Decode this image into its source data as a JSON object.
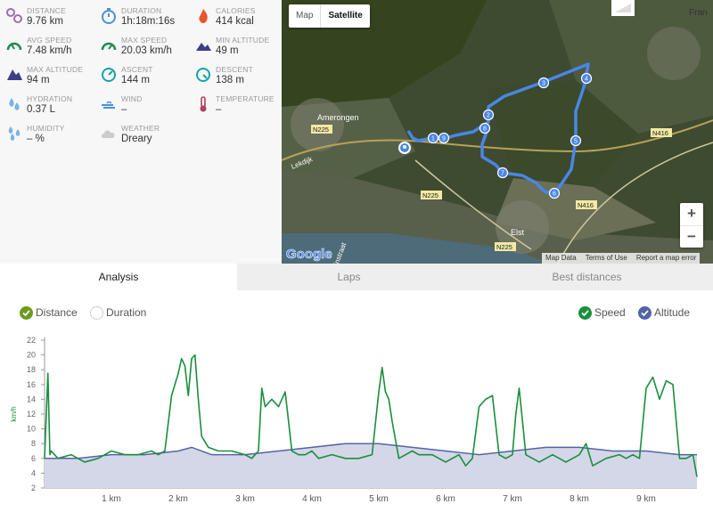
{
  "stats": [
    {
      "label": "DISTANCE",
      "value": "9.76 km",
      "icon": "distance-icon",
      "color": "#9c6db6"
    },
    {
      "label": "DURATION",
      "value": "1h:18m:16s",
      "icon": "stopwatch-icon",
      "color": "#4a90d9"
    },
    {
      "label": "CALORIES",
      "value": "414 kcal",
      "icon": "flame-icon",
      "color": "#e8562a"
    },
    {
      "label": "AVG SPEED",
      "value": "7.48 km/h",
      "icon": "avg-speed-gauge-icon",
      "color": "#1e8a4c"
    },
    {
      "label": "MAX SPEED",
      "value": "20.03 km/h",
      "icon": "max-speed-gauge-icon",
      "color": "#1e8a4c"
    },
    {
      "label": "MIN ALTITUDE",
      "value": "49 m",
      "icon": "min-altitude-icon",
      "color": "#3d3d8a"
    },
    {
      "label": "MAX ALTITUDE",
      "value": "94 m",
      "icon": "max-altitude-icon",
      "color": "#3d3d8a"
    },
    {
      "label": "ASCENT",
      "value": "144 m",
      "icon": "ascent-icon",
      "color": "#1aa3a3"
    },
    {
      "label": "DESCENT",
      "value": "138 m",
      "icon": "descent-icon",
      "color": "#1aa3a3"
    },
    {
      "label": "HYDRATION",
      "value": "0.37 L",
      "icon": "water-drops-icon",
      "color": "#7ab3e6"
    },
    {
      "label": "WIND",
      "value": "–",
      "icon": "wind-icon",
      "color": "#4a90d9"
    },
    {
      "label": "TEMPERATURE",
      "value": "–",
      "icon": "thermometer-icon",
      "color": "#b04060"
    },
    {
      "label": "HUMIDITY",
      "value": "– %",
      "icon": "humidity-drops-icon",
      "color": "#7ab3e6"
    },
    {
      "label": "WEATHER",
      "value": "Dreary",
      "icon": "cloud-icon",
      "color": "#cccccc"
    }
  ],
  "map": {
    "toggle": {
      "map": "Map",
      "satellite": "Satellite"
    },
    "labels": {
      "town1": "Amerongen",
      "town2": "Elst",
      "edge": "Fran",
      "road1": "N225",
      "road2": "N225",
      "road3": "N225",
      "road4": "N416",
      "road5": "N416",
      "street1": "Lekdijk",
      "street2": "Rijnstraat",
      "brand": "Google"
    },
    "markers": [
      "1",
      "2",
      "3",
      "4",
      "5",
      "6",
      "7",
      "8",
      "9"
    ],
    "attribution": {
      "data": "Map Data",
      "terms": "Terms of Use",
      "report": "Report a map error"
    },
    "zoom_in": "+",
    "zoom_out": "−"
  },
  "tabs": {
    "analysis": "Analysis",
    "laps": "Laps",
    "best": "Best distances"
  },
  "options": {
    "distance": "Distance",
    "duration": "Duration",
    "speed": "Speed",
    "altitude": "Altitude"
  },
  "colors": {
    "speed": "#1a8f3c",
    "altitude": "#5563a6",
    "altitude_fill": "#d4d7e8",
    "distance_check": "#6b9b1f"
  },
  "chart_data": {
    "type": "line",
    "ylabel": "km/h",
    "ylim": [
      2,
      22
    ],
    "yticks": [
      2,
      4,
      6,
      8,
      10,
      12,
      14,
      16,
      18,
      20,
      22
    ],
    "xlim": [
      0,
      9.76
    ],
    "xticks": [
      "1 km",
      "2 km",
      "3 km",
      "4 km",
      "5 km",
      "6 km",
      "7 km",
      "8 km",
      "9 km"
    ],
    "series": [
      {
        "name": "Speed",
        "x": [
          0,
          0.05,
          0.08,
          0.1,
          0.2,
          0.4,
          0.6,
          0.8,
          0.9,
          1,
          1.2,
          1.4,
          1.6,
          1.7,
          1.8,
          1.9,
          2,
          2.05,
          2.1,
          2.15,
          2.2,
          2.25,
          2.3,
          2.35,
          2.45,
          2.6,
          2.8,
          3,
          3.1,
          3.2,
          3.25,
          3.3,
          3.4,
          3.5,
          3.6,
          3.7,
          3.8,
          3.9,
          4,
          4.1,
          4.3,
          4.5,
          4.7,
          4.9,
          5,
          5.05,
          5.1,
          5.15,
          5.2,
          5.3,
          5.4,
          5.5,
          5.6,
          5.8,
          6,
          6.2,
          6.3,
          6.4,
          6.5,
          6.6,
          6.7,
          6.8,
          6.9,
          7,
          7.05,
          7.1,
          7.2,
          7.4,
          7.6,
          7.8,
          7.9,
          8,
          8.1,
          8.2,
          8.4,
          8.6,
          8.7,
          8.8,
          8.9,
          9,
          9.1,
          9.2,
          9.3,
          9.4,
          9.5,
          9.6,
          9.7,
          9.76
        ],
        "values": [
          6,
          17.5,
          6.5,
          7,
          6,
          6.5,
          5.5,
          6,
          6.5,
          7,
          6.5,
          6.5,
          7,
          6.5,
          7,
          14.5,
          17.5,
          19.5,
          18.5,
          14.5,
          19.5,
          20,
          14,
          9,
          7.5,
          7,
          7,
          6.5,
          6,
          7,
          15.5,
          13,
          14,
          13,
          15,
          7,
          6.5,
          6.5,
          7,
          6,
          6.5,
          6,
          6,
          6.5,
          15,
          18.3,
          15,
          14,
          11,
          6,
          6.5,
          7,
          6.5,
          6.5,
          5.5,
          6.5,
          5,
          6,
          13,
          14,
          14.5,
          6.5,
          6,
          6.5,
          12,
          15.5,
          6.5,
          5.5,
          6.5,
          5.5,
          6,
          6.5,
          8,
          5,
          6,
          6.5,
          6,
          6.5,
          6,
          15.5,
          17,
          14,
          16.5,
          16,
          6,
          6,
          6.5,
          3.5
        ]
      },
      {
        "name": "Altitude",
        "x": [
          0,
          0.5,
          1,
          1.5,
          2,
          2.2,
          2.5,
          3,
          3.5,
          4,
          4.5,
          5,
          5.5,
          6,
          6.5,
          7,
          7.5,
          8,
          8.5,
          9,
          9.5,
          9.76
        ],
        "values": [
          6,
          6,
          6.5,
          6.5,
          7,
          7.5,
          6.5,
          6.5,
          7,
          7.5,
          8,
          8,
          7.5,
          7,
          6.5,
          7,
          7.5,
          7.5,
          7,
          7,
          6.5,
          6.5
        ]
      }
    ]
  }
}
